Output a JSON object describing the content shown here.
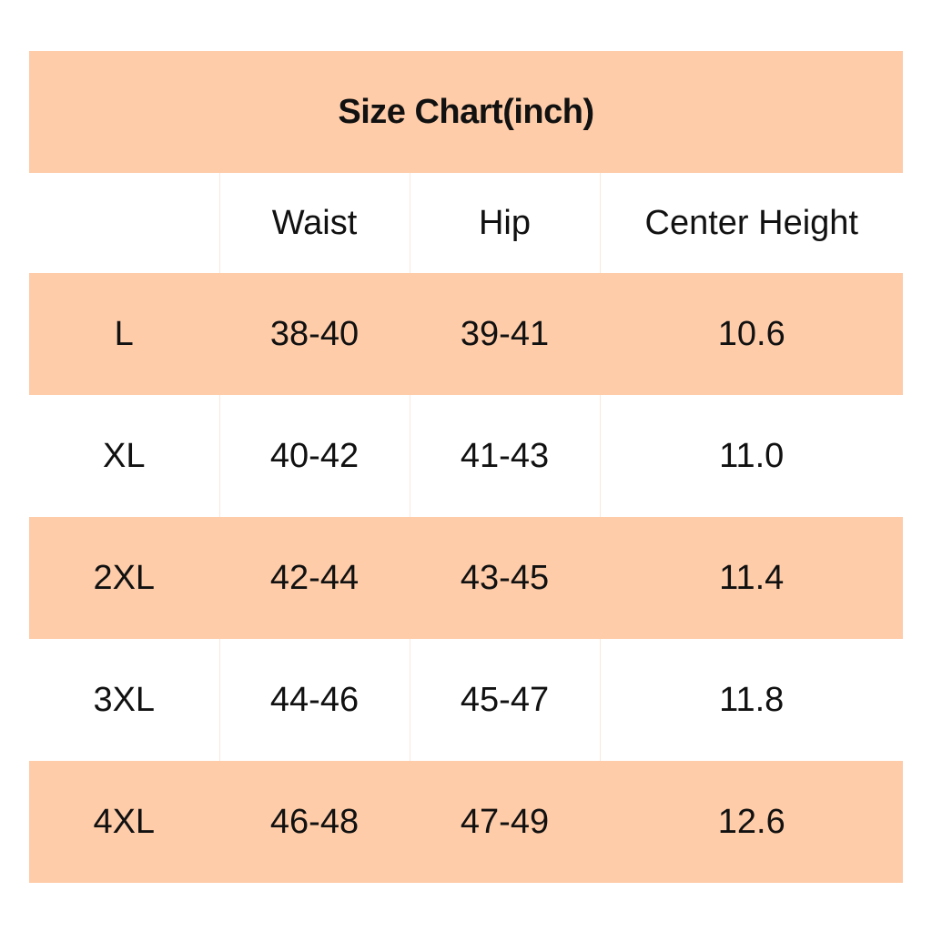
{
  "chart_data": {
    "type": "table",
    "title": "Size Chart(inch)",
    "columns": [
      "",
      "Waist",
      "Hip",
      "Center Height"
    ],
    "rows": [
      [
        "L",
        "38-40",
        "39-41",
        "10.6"
      ],
      [
        "XL",
        "40-42",
        "41-43",
        "11.0"
      ],
      [
        "2XL",
        "42-44",
        "43-45",
        "11.4"
      ],
      [
        "3XL",
        "44-46",
        "45-47",
        "11.8"
      ],
      [
        "4XL",
        "46-48",
        "47-49",
        "12.6"
      ]
    ]
  },
  "colors": {
    "band": "#fecca9",
    "background": "#ffffff",
    "text": "#111111"
  }
}
